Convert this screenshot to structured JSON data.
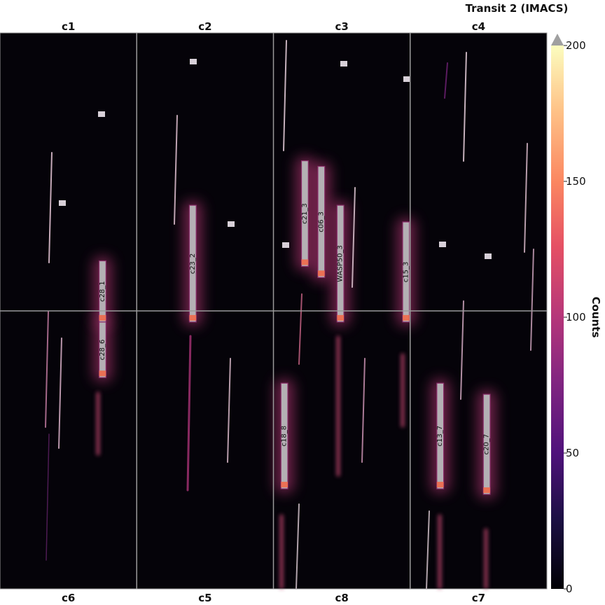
{
  "title": "Transit 2 (IMACS)",
  "chart_data": {
    "type": "heatmap",
    "title": "Transit 2 (IMACS)",
    "colorbar": {
      "label": "Counts",
      "min": 0,
      "max": 200,
      "ticks": [
        0,
        50,
        100,
        150,
        200
      ],
      "extend": "max",
      "colormap": "magma"
    },
    "chips": {
      "top": [
        "c1",
        "c2",
        "c3",
        "c4"
      ],
      "bottom": [
        "c6",
        "c5",
        "c8",
        "c7"
      ]
    },
    "apertures": [
      {
        "label": "c28_1",
        "col": 0.75,
        "y0": 0.41,
        "y1": 0.52,
        "width": 0.05
      },
      {
        "label": "c28_6",
        "col": 0.75,
        "y0": 0.52,
        "y1": 0.62,
        "width": 0.05
      },
      {
        "label": "c23_2",
        "col": 1.41,
        "y0": 0.31,
        "y1": 0.52,
        "width": 0.05
      },
      {
        "label": "c21_3",
        "col": 2.23,
        "y0": 0.23,
        "y1": 0.42,
        "width": 0.05
      },
      {
        "label": "c06_3",
        "col": 2.35,
        "y0": 0.24,
        "y1": 0.44,
        "width": 0.05
      },
      {
        "label": "WASP50_3",
        "col": 2.49,
        "y0": 0.31,
        "y1": 0.52,
        "width": 0.05
      },
      {
        "label": "c15_3",
        "col": 2.97,
        "y0": 0.34,
        "y1": 0.52,
        "width": 0.05
      },
      {
        "label": "c18_8",
        "col": 2.08,
        "y0": 0.63,
        "y1": 0.82,
        "width": 0.05
      },
      {
        "label": "c13_7",
        "col": 3.22,
        "y0": 0.63,
        "y1": 0.82,
        "width": 0.05
      },
      {
        "label": "c20_7",
        "col": 3.56,
        "y0": 0.65,
        "y1": 0.83,
        "width": 0.05
      }
    ]
  }
}
